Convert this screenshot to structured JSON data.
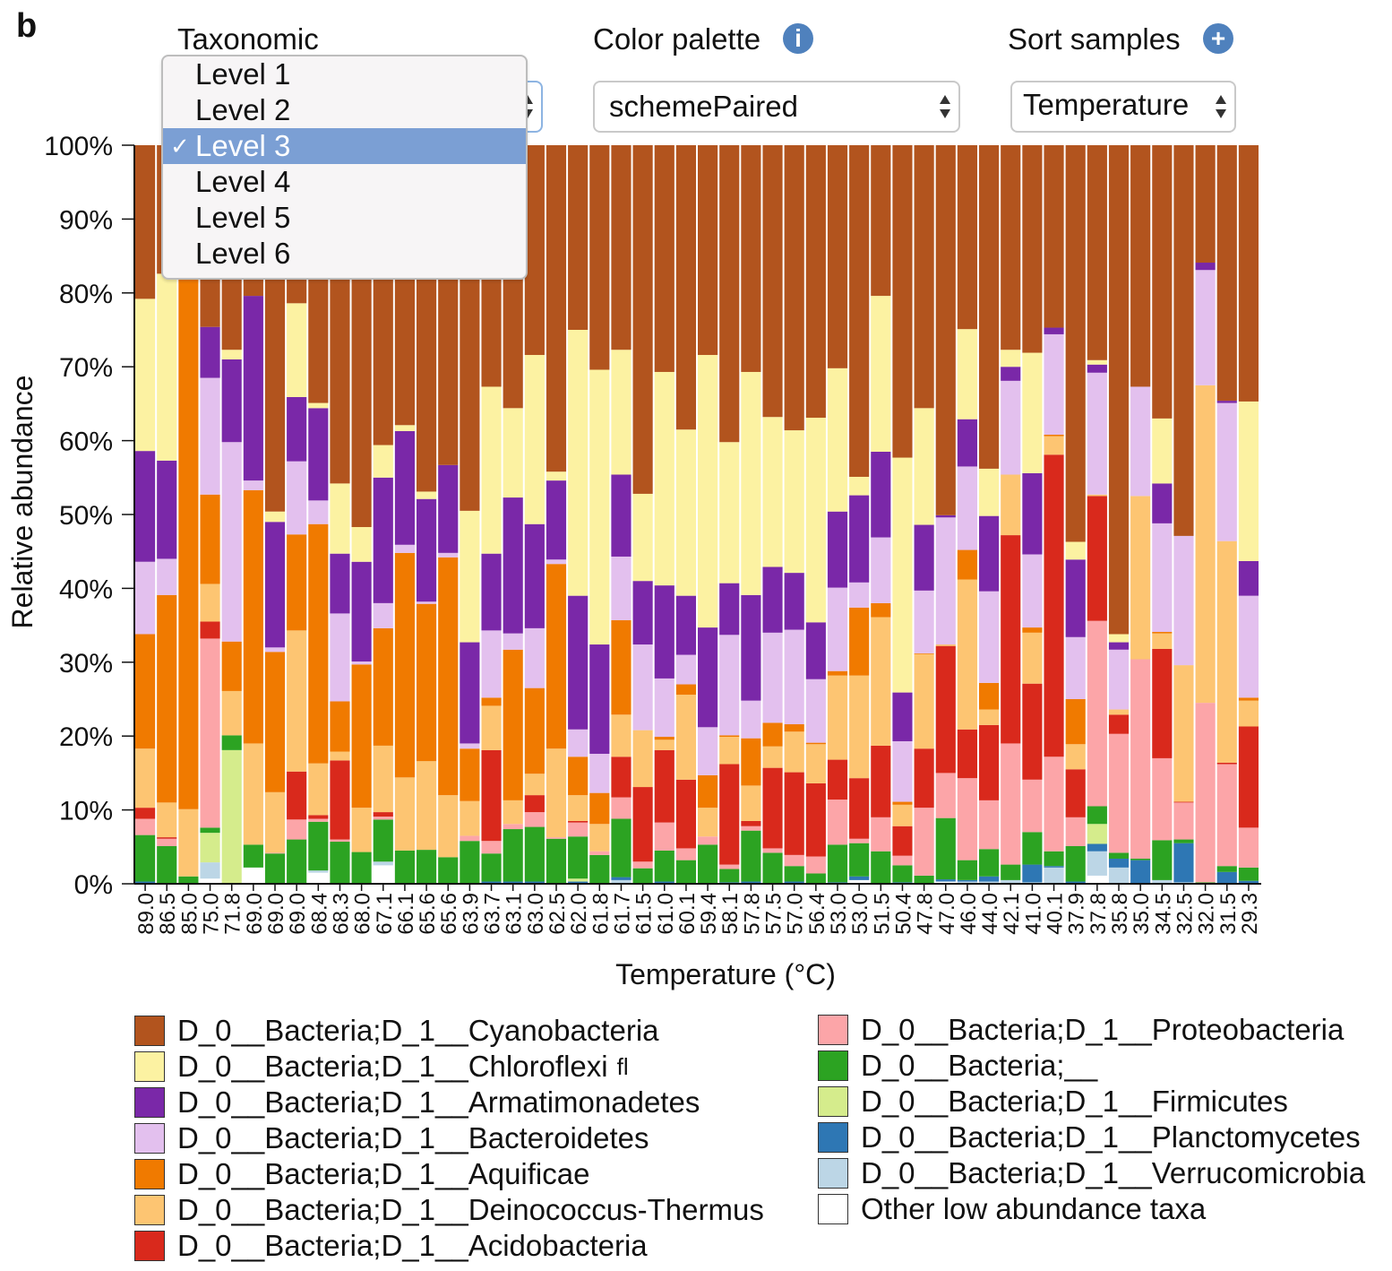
{
  "panel_label": "b",
  "controls": {
    "taxonomic": {
      "label": "Taxonomic",
      "options": [
        "Level 1",
        "Level 2",
        "Level 3",
        "Level 4",
        "Level 5",
        "Level 6"
      ],
      "selected": "Level 3",
      "check": "✓"
    },
    "color_palette": {
      "label": "Color palette",
      "value": "schemePaired",
      "icon": "info-icon",
      "icon_glyph": "i"
    },
    "sort_samples": {
      "label": "Sort samples",
      "value": "Temperature",
      "icon": "plus-icon",
      "icon_glyph": "+"
    }
  },
  "chart_data": {
    "type": "bar",
    "stacked": true,
    "ylabel": "Relative abundance",
    "xlabel": "Temperature (°C)",
    "ylim": [
      0,
      100
    ],
    "yticks": [
      "0%",
      "10%",
      "20%",
      "30%",
      "40%",
      "50%",
      "60%",
      "70%",
      "80%",
      "90%",
      "100%"
    ],
    "categories": [
      "89.0",
      "86.5",
      "85.0",
      "75.0",
      "71.8",
      "69.0",
      "69.0",
      "69.0",
      "68.4",
      "68.3",
      "68.0",
      "67.1",
      "66.1",
      "65.6",
      "65.6",
      "63.9",
      "63.7",
      "63.1",
      "63.0",
      "62.5",
      "62.0",
      "61.8",
      "61.7",
      "61.5",
      "61.0",
      "60.1",
      "59.4",
      "58.1",
      "57.8",
      "57.5",
      "57.0",
      "56.4",
      "53.0",
      "53.0",
      "51.5",
      "50.4",
      "47.8",
      "47.0",
      "46.0",
      "44.0",
      "42.1",
      "41.0",
      "40.1",
      "37.9",
      "37.8",
      "35.8",
      "35.0",
      "34.5",
      "32.5",
      "32.0",
      "31.5",
      "29.3"
    ],
    "series": [
      {
        "name": "Other low abundance taxa",
        "color": "#ffffff"
      },
      {
        "name": "D_0__Bacteria;D_1__Verrucomicrobia",
        "color": "#bcd6e6"
      },
      {
        "name": "D_0__Bacteria;D_1__Planctomycetes",
        "color": "#2e77b4"
      },
      {
        "name": "D_0__Bacteria;D_1__Firmicutes",
        "color": "#d5ec8c"
      },
      {
        "name": "D_0__Bacteria;__",
        "color": "#2ca322"
      },
      {
        "name": "D_0__Bacteria;D_1__Proteobacteria",
        "color": "#fca5a8"
      },
      {
        "name": "D_0__Bacteria;D_1__Acidobacteria",
        "color": "#d9291c"
      },
      {
        "name": "D_0__Bacteria;D_1__Deinococcus-Thermus",
        "color": "#fdc572"
      },
      {
        "name": "D_0__Bacteria;D_1__Aquificae",
        "color": "#f07a00"
      },
      {
        "name": "D_0__Bacteria;D_1__Bacteroidetes",
        "color": "#e3c0ee"
      },
      {
        "name": "D_0__Bacteria;D_1__Armatimonadetes",
        "color": "#7a28a8"
      },
      {
        "name": "D_0__Bacteria;D_1__Chloroflexi",
        "color": "#fcf2a2"
      },
      {
        "name": "D_0__Bacteria;D_1__Cyanobacteria",
        "color": "#b2541e"
      }
    ],
    "values_by_sample_note": "each row = one sample, percentages in series order (bottom to top)",
    "values_by_sample": [
      [
        0,
        0,
        0.3,
        0,
        6.3,
        2.2,
        1.5,
        8.0,
        15.5,
        9.8,
        15.0,
        20.6,
        20.8
      ],
      [
        0,
        0,
        0,
        0,
        5.1,
        1.0,
        0.2,
        4.7,
        28.1,
        4.9,
        13.3,
        25.3,
        17.4
      ],
      [
        0,
        0,
        0,
        0,
        1.0,
        0,
        0,
        9.1,
        71.7,
        0,
        0,
        0,
        18.2
      ],
      [
        0.7,
        2.2,
        0,
        4.0,
        0.7,
        25.6,
        2.3,
        5.1,
        12.1,
        15.8,
        6.9,
        0,
        24.6
      ],
      [
        0,
        0,
        0,
        18.1,
        2.0,
        0,
        0,
        6.0,
        6.7,
        27.0,
        11.2,
        1.3,
        27.7
      ],
      [
        2.2,
        0,
        0,
        0,
        3.1,
        0,
        0,
        13.7,
        34.3,
        1.3,
        25.0,
        0,
        20.4
      ],
      [
        0,
        0,
        0,
        0,
        4.1,
        0.1,
        0,
        8.2,
        19.0,
        0.6,
        17.0,
        1.4,
        49.6
      ],
      [
        0,
        0,
        0,
        0,
        6.0,
        2.7,
        6.5,
        19.1,
        13.0,
        9.9,
        8.7,
        12.7,
        21.4
      ],
      [
        1.5,
        0.3,
        0,
        0,
        6.6,
        0.4,
        0.5,
        7.0,
        32.4,
        3.2,
        12.5,
        0.7,
        34.9
      ],
      [
        0,
        0,
        0,
        0,
        5.7,
        0.3,
        10.7,
        1.2,
        6.8,
        11.9,
        8.1,
        9.5,
        45.8
      ],
      [
        0,
        0,
        0,
        0,
        4.3,
        0,
        0,
        6.0,
        19.4,
        0.4,
        13.5,
        4.7,
        51.7
      ],
      [
        2.5,
        0.5,
        0,
        0,
        5.7,
        0.4,
        0.6,
        9.0,
        15.9,
        3.4,
        17.0,
        4.4,
        40.6
      ],
      [
        0,
        0,
        0,
        0,
        4.5,
        0,
        0,
        9.9,
        30.4,
        1.1,
        15.4,
        0.8,
        37.9
      ],
      [
        0,
        0,
        0,
        0,
        4.6,
        0,
        0,
        12.0,
        21.3,
        0.3,
        13.9,
        1.0,
        46.9
      ],
      [
        0,
        0,
        0,
        0,
        3.6,
        0,
        0,
        8.4,
        32.2,
        0.6,
        11.9,
        0,
        43.3
      ],
      [
        0,
        0,
        0,
        0,
        5.8,
        0.7,
        0,
        4.7,
        7.1,
        0.7,
        13.7,
        17.8,
        49.5
      ],
      [
        0,
        0,
        0.3,
        0,
        3.8,
        1.7,
        12.3,
        6.0,
        1.1,
        9.1,
        10.4,
        22.6,
        32.7
      ],
      [
        0,
        0,
        0.3,
        0,
        7.1,
        0.7,
        0,
        3.2,
        20.4,
        2.2,
        18.4,
        12.1,
        35.6
      ],
      [
        0,
        0,
        0.3,
        0,
        7.4,
        2.0,
        2.3,
        2.9,
        11.6,
        8.1,
        14.1,
        22.9,
        28.4
      ],
      [
        0,
        0,
        0,
        0,
        6.1,
        0.2,
        0,
        12.0,
        25.0,
        0.6,
        10.7,
        1.2,
        44.2
      ],
      [
        0,
        0,
        0.3,
        0.4,
        5.7,
        1.9,
        0.2,
        3.5,
        5.2,
        3.7,
        18.1,
        36.0,
        25.0
      ],
      [
        0,
        0,
        0,
        0,
        3.9,
        0.5,
        0,
        3.7,
        4.2,
        5.3,
        14.8,
        37.2,
        30.4
      ],
      [
        0,
        0.5,
        0.4,
        0,
        7.9,
        2.9,
        5.5,
        5.7,
        12.8,
        8.6,
        11.1,
        16.9,
        27.7
      ],
      [
        0,
        0,
        0,
        0,
        2.1,
        0.9,
        10.1,
        7.7,
        0,
        11.6,
        8.6,
        11.8,
        47.2
      ],
      [
        0,
        0,
        0.3,
        0,
        4.2,
        3.8,
        9.8,
        1.4,
        0.4,
        7.9,
        12.6,
        28.9,
        30.7
      ],
      [
        0,
        0,
        0,
        0,
        3.2,
        1.6,
        9.3,
        11.5,
        1.4,
        4.0,
        8.0,
        22.5,
        38.5
      ],
      [
        0,
        0,
        0,
        0,
        5.3,
        1.1,
        0,
        3.9,
        4.4,
        6.5,
        13.5,
        36.9,
        28.4
      ],
      [
        0,
        0,
        0.2,
        0,
        1.8,
        0.6,
        13.6,
        3.7,
        0.2,
        13.6,
        7.0,
        19.1,
        40.2
      ],
      [
        0,
        0,
        0.3,
        0,
        6.9,
        0.6,
        0.7,
        4.8,
        6.4,
        5.1,
        14.3,
        30.2,
        30.7
      ],
      [
        0,
        0,
        0,
        0,
        4.2,
        0.6,
        10.9,
        2.9,
        3.2,
        12.2,
        8.9,
        20.3,
        36.8
      ],
      [
        0,
        0,
        0.3,
        0,
        2.1,
        1.5,
        11.2,
        5.5,
        1.0,
        12.8,
        7.7,
        19.3,
        38.6
      ],
      [
        0,
        0,
        0,
        0,
        1.4,
        2.3,
        9.9,
        5.3,
        0.2,
        8.6,
        7.7,
        27.7,
        36.9
      ],
      [
        0,
        0,
        0.2,
        0,
        5.1,
        6.1,
        5.4,
        11.4,
        0.6,
        11.3,
        10.3,
        19.4,
        30.2
      ],
      [
        0.5,
        0,
        0.5,
        0,
        4.5,
        0.6,
        8.2,
        13.9,
        9.2,
        3.4,
        11.8,
        2.5,
        44.9
      ],
      [
        0,
        0,
        0,
        0,
        4.4,
        4.6,
        9.7,
        17.4,
        1.9,
        8.9,
        11.6,
        21.1,
        20.4
      ],
      [
        0,
        0,
        0.2,
        0,
        2.3,
        1.3,
        4.0,
        2.9,
        0.4,
        8.2,
        6.6,
        31.8,
        42.3
      ],
      [
        0,
        0,
        0,
        0,
        1.1,
        9.2,
        8.0,
        12.8,
        0.1,
        8.5,
        8.9,
        15.8,
        35.6
      ],
      [
        0.3,
        0,
        0.3,
        0,
        8.3,
        6.1,
        17.2,
        0.2,
        0,
        17.2,
        0.3,
        0,
        50.1
      ],
      [
        0,
        0.3,
        0.2,
        0,
        2.7,
        11.1,
        6.6,
        20.3,
        4.0,
        11.3,
        6.4,
        12.2,
        24.9
      ],
      [
        0,
        0.3,
        0.7,
        0,
        3.7,
        6.6,
        10.2,
        2.1,
        3.6,
        12.4,
        10.2,
        6.4,
        43.8
      ],
      [
        0,
        0.5,
        0,
        0,
        2.1,
        16.4,
        28.2,
        8.2,
        0,
        12.7,
        1.9,
        2.3,
        27.7
      ],
      [
        0,
        0.2,
        2.4,
        0,
        4.4,
        7.1,
        13.0,
        6.9,
        0.7,
        9.9,
        11.0,
        16.3,
        28.1
      ],
      [
        0,
        2.2,
        0.2,
        0,
        2.0,
        12.8,
        40.9,
        2.5,
        0.2,
        13.6,
        0.9,
        0,
        24.7
      ],
      [
        0,
        0,
        0.3,
        0,
        4.8,
        3.9,
        6.5,
        3.4,
        6.1,
        8.4,
        10.5,
        2.4,
        53.7
      ],
      [
        1.1,
        3.3,
        1.0,
        2.7,
        2.4,
        25.1,
        16.9,
        0.2,
        0,
        16.5,
        1.1,
        0.6,
        29.1
      ],
      [
        0,
        2.2,
        1.2,
        0,
        0.8,
        16.1,
        2.6,
        0.7,
        0,
        8.1,
        1.0,
        1.1,
        66.2
      ],
      [
        0,
        0,
        3.2,
        0,
        0.2,
        27.0,
        0,
        22.1,
        0,
        14.8,
        0,
        0,
        32.7
      ],
      [
        0,
        0.5,
        0,
        0,
        5.4,
        11.1,
        14.8,
        2.1,
        0.2,
        14.7,
        5.4,
        8.8,
        37.0
      ],
      [
        0,
        0.2,
        5.3,
        0,
        0.5,
        5.0,
        0.1,
        18.5,
        0,
        17.5,
        0,
        0,
        52.9
      ],
      [
        0,
        0,
        0,
        0,
        0.2,
        24.3,
        0,
        43.0,
        0,
        15.6,
        1.0,
        0,
        15.9
      ],
      [
        0,
        0,
        1.6,
        0,
        0.8,
        13.8,
        0.2,
        30.0,
        0,
        18.7,
        0.3,
        0,
        34.6
      ],
      [
        0,
        0,
        0.4,
        0,
        1.8,
        5.4,
        13.7,
        3.5,
        0.4,
        13.8,
        4.7,
        21.6,
        34.7
      ]
    ]
  },
  "legend": {
    "left": [
      {
        "label": "D_0__Bacteria;D_1__Cyanobacteria",
        "color": "#b2541e"
      },
      {
        "label": "D_0__Bacteria;D_1__Chloroflexi",
        "suffix": "fl",
        "color": "#fcf2a2"
      },
      {
        "label": "D_0__Bacteria;D_1__Armatimonadetes",
        "color": "#7a28a8"
      },
      {
        "label": "D_0__Bacteria;D_1__Bacteroidetes",
        "color": "#e3c0ee"
      },
      {
        "label": "D_0__Bacteria;D_1__Aquificae",
        "color": "#f07a00"
      },
      {
        "label": "D_0__Bacteria;D_1__Deinococcus-Thermus",
        "color": "#fdc572"
      },
      {
        "label": "D_0__Bacteria;D_1__Acidobacteria",
        "color": "#d9291c"
      }
    ],
    "right": [
      {
        "label": "D_0__Bacteria;D_1__Proteobacteria",
        "color": "#fca5a8"
      },
      {
        "label": "D_0__Bacteria;__",
        "color": "#2ca322"
      },
      {
        "label": "D_0__Bacteria;D_1__Firmicutes",
        "color": "#d5ec8c"
      },
      {
        "label": "D_0__Bacteria;D_1__Planctomycetes",
        "color": "#2e77b4"
      },
      {
        "label": "D_0__Bacteria;D_1__Verrucomicrobia",
        "color": "#bcd6e6"
      },
      {
        "label": "Other low abundance taxa",
        "color": "#ffffff"
      }
    ]
  }
}
